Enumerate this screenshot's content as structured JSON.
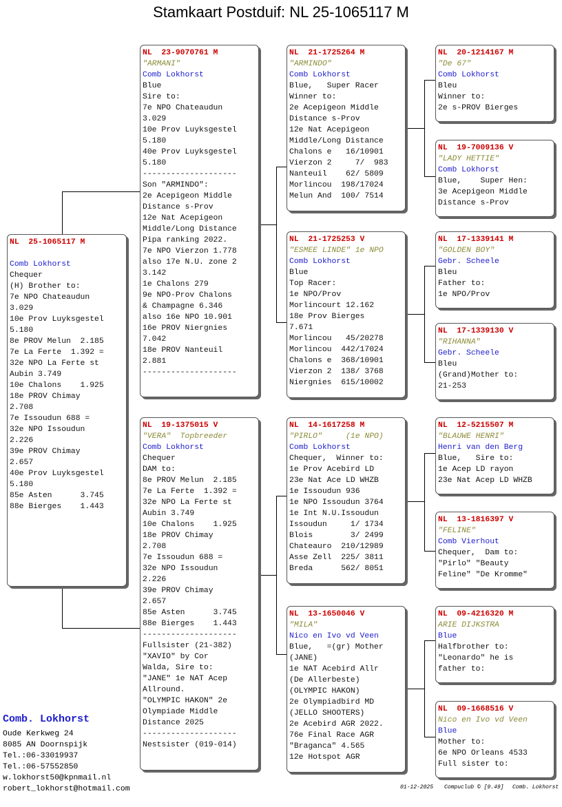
{
  "title": "Stamkaart Postduif: NL  25-1065117 M",
  "cards": {
    "subject": {
      "ring": "NL  25-1065117 M",
      "name": "",
      "owner": "Comb Lokhorst",
      "lines": [
        "Chequer",
        "(H) Brother to:",
        "7e NPO Chateaudun",
        "3.029",
        "10e Prov Luyksgestel",
        "5.180",
        "8e PROV Melun  2.185",
        "7e La Ferte  1.392 =",
        "32e NPO La Ferte st",
        "Aubin 3.749",
        "10e Chalons    1.925",
        "18e PROV Chimay",
        "2.708",
        "7e Issoudun 688 =",
        "32e NPO Issoudun",
        "2.226",
        "39e PROV Chimay",
        "2.657",
        "40e Prov Luyksgestel",
        "5.180",
        "85e Asten      3.745",
        "88e Bierges    1.443"
      ]
    },
    "sire": {
      "ring": "NL  23-9070761 M",
      "name": "\"ARMANI\"",
      "owner": "Comb Lokhorst",
      "lines": [
        "Blue",
        "Sire to:",
        "7e NPO Chateaudun",
        "3.029",
        "10e Prov Luyksgestel",
        "5.180",
        "40e Prov Luyksgestel",
        "5.180",
        "--------------------",
        "Son \"ARMINDO\":",
        "2e Acepigeon Middle",
        "Distance s-Prov",
        "12e Nat Acepigeon",
        "Middle/Long Distance",
        "Pipa ranking 2022.",
        "7e NPO Vierzon 1.778",
        "also 17e N.U. zone 2",
        "3.142",
        "1e Chalons 279",
        "9e NPO-Prov Chalons",
        "& Champagne 6.346",
        "also 16e NPO 10.901",
        "16e PROV Niergnies",
        "7.042",
        "18e PROV Nanteuil",
        "2.881",
        "--------------------"
      ]
    },
    "dam": {
      "ring": "NL  19-1375015 V",
      "name": "\"VERA\"  Topbreeder",
      "owner": "Comb Lokhorst",
      "lines": [
        "Chequer",
        "DAM to:",
        "8e PROV Melun  2.185",
        "7e La Ferte  1.392 =",
        "32e NPO La Ferte st",
        "Aubin 3.749",
        "10e Chalons    1.925",
        "18e PROV Chimay",
        "2.708",
        "7e Issoudun 688 =",
        "32e NPO Issoudun",
        "2.226",
        "39e PROV Chimay",
        "2.657",
        "85e Asten      3.745",
        "88e Bierges    1.443",
        "--------------------",
        "Fullsister (21-382)",
        "\"XAVIO\" by Cor",
        "Walda, Sire to:",
        "\"JANE\" 1e NAT Acep",
        "Allround.",
        "\"OLYMPIC HAKON\" 2e",
        "Olympiade Middle",
        "Distance 2025",
        "--------------------",
        "Nestsister (019-014)"
      ]
    },
    "ss": {
      "ring": "NL  21-1725264 M",
      "name": "\"ARMINDO\"",
      "owner": "Comb Lokhorst",
      "lines": [
        "Blue,   Super Racer",
        "Winner to:",
        "2e Acepigeon Middle",
        "Distance s-Prov",
        "12e Nat Acepigeon",
        "Middle/Long Distance",
        "Chalons e   16/10901",
        "Vierzon 2     7/  983",
        "Nanteuil    62/ 5809",
        "Morlincou  198/17024",
        "Melun And  100/ 7514"
      ]
    },
    "sd": {
      "ring": "NL  21-1725253 V",
      "name": "\"ESMEE LINDE\" 1e NPO",
      "owner": "Comb Lokhorst",
      "lines": [
        "Blue",
        "Top Racer:",
        "1e NPO/Prov",
        "Morlincourt 12.162",
        "18e Prov Bierges",
        "7.671",
        "Morlincou   45/20278",
        "Morlincou  442/17024",
        "Chalons e  368/10901",
        "Vierzon 2  138/ 3768",
        "Niergnies  615/10002"
      ]
    },
    "ds": {
      "ring": "NL  14-1617258 M",
      "name": "\"PIRLO\"     (1e NPO)",
      "owner": "Comb Lokhorst",
      "lines": [
        "Chequer,  Winner to:",
        "1e Prov Acebird LD",
        "23e Nat Ace LD WHZB",
        "1e Issoudun 936",
        "1e NPO Issoudun 3764",
        "1e Int N.U.Issoudun",
        "Issoudun     1/ 1734",
        "Blois        3/ 2499",
        "Chateauro  210/12989",
        "Asse Zell  225/ 3811",
        "Breda      562/ 8051"
      ]
    },
    "dd": {
      "ring": "NL  13-1650046 V",
      "name": "\"MILA\"",
      "owner": "Nico en Ivo vd Veen",
      "lines": [
        "Blue,   =(gr) Mother",
        "(JANE)",
        "1e NAT Acebird Allr",
        "(De Allerbeste)",
        "(OLYMPIC HAKON)",
        "2e Olympiadbird MD",
        "(JELLO SHOOTERS)",
        "2e Acebird AGR 2022.",
        "76e Final Race AGR",
        "\"Braganca\" 4.565",
        "12e Hotspot AGR"
      ]
    },
    "sss": {
      "ring": "NL  20-1214167 M",
      "name": "\"De 67\"",
      "owner": "Comb Lokhorst",
      "lines": [
        "Bleu",
        "Winner to:",
        "2e s-PROV Bierges"
      ]
    },
    "ssd": {
      "ring": "NL  19-7009136 V",
      "name": "\"LADY HETTIE\"",
      "owner": "Comb Lokhorst",
      "lines": [
        "Blue,    Super Hen:",
        "3e Acepigeon Middle",
        "Distance s-Prov"
      ]
    },
    "sds": {
      "ring": "NL  17-1339141 M",
      "name": "\"GOLDEN BOY\"",
      "owner": "Gebr. Scheele",
      "lines": [
        "Bleu",
        "Father to:",
        "1e NPO/Prov"
      ]
    },
    "sdd": {
      "ring": "NL  17-1339130 V",
      "name": "\"RIHANNA\"",
      "owner": "Gebr. Scheele",
      "lines": [
        "Bleu",
        "(Grand)Mother to:",
        "21-253"
      ]
    },
    "dss": {
      "ring": "NL  12-5215507 M",
      "name": "\"BLAUWE HENRI\"",
      "owner": "Henri van den Berg",
      "lines": [
        "Blue,   Sire to:",
        "1e Acep LD rayon",
        "23e Nat Acep LD WHZB"
      ]
    },
    "dsd": {
      "ring": "NL  13-1816397 V",
      "name": "\"FELINE\"",
      "owner": "Comb Vierhout",
      "lines": [
        "Chequer,  Dam to:",
        "\"Pirlo\" \"Beauty",
        "Feline\" \"De Kromme\""
      ]
    },
    "dds": {
      "ring": "NL  09-4216320 M",
      "name": "ARIE DIJKSTRA",
      "owner": "Blue",
      "lines": [
        "Halfbrother to:",
        "\"Leonardo\" he is",
        "father to:"
      ]
    },
    "ddd": {
      "ring": "NL  09-1668516 V",
      "name": "Nico en Ivo vd Veen",
      "owner": "Blue",
      "lines": [
        "Mother to:",
        "6e NPO Orleans 4533",
        "Full sister to:"
      ]
    }
  },
  "contact": {
    "brand": "Comb. Lokhorst",
    "lines": [
      "Oude Kerkweg 24",
      "8085 AN  Doornspijk",
      "Tel.:06-33019937",
      "Tel.:06-57552850",
      "w.lokhorst50@kpnmail.nl",
      "robert_lokhorst@hotmail.com"
    ]
  },
  "footer": {
    "date": "01-12-2025",
    "software": "Compuclub © [9.49]",
    "owner": "Comb. Lokhorst"
  }
}
